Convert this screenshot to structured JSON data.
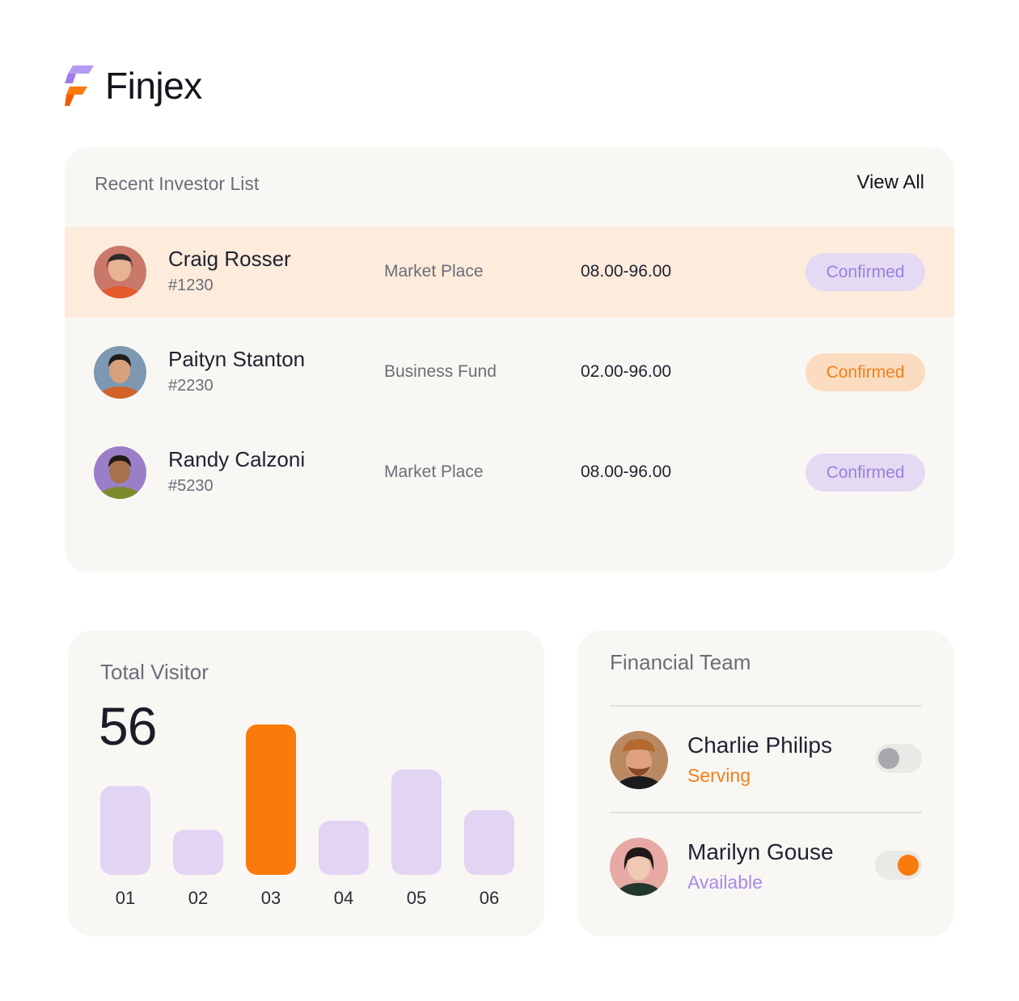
{
  "brand": {
    "name": "Finjex"
  },
  "investors": {
    "title": "Recent Investor List",
    "view_all": "View All",
    "rows": [
      {
        "name": "Craig Rosser",
        "id": "#1230",
        "type": "Market Place",
        "range": "08.00-96.00",
        "status": "Confirmed"
      },
      {
        "name": "Paityn Stanton",
        "id": "#2230",
        "type": "Business Fund",
        "range": "02.00-96.00",
        "status": "Confirmed"
      },
      {
        "name": "Randy Calzoni",
        "id": "#5230",
        "type": "Market Place",
        "range": "08.00-96.00",
        "status": "Confirmed"
      }
    ]
  },
  "visitors": {
    "title": "Total Visitor",
    "total": "56"
  },
  "chart_data": {
    "type": "bar",
    "categories": [
      "01",
      "02",
      "03",
      "04",
      "05",
      "06"
    ],
    "values": [
      0.59,
      0.3,
      1.0,
      0.36,
      0.7,
      0.43
    ],
    "highlight_index": 2,
    "colors": {
      "default": "#e2d4f3",
      "highlight": "#fb7a0c"
    }
  },
  "team": {
    "title": "Financial Team",
    "members": [
      {
        "name": "Charlie Philips",
        "status": "Serving",
        "toggle": "off"
      },
      {
        "name": "Marilyn Gouse",
        "status": "Available",
        "toggle": "on"
      }
    ]
  },
  "colors": {
    "accent_orange": "#f57e18",
    "accent_purple": "#9b7fe0",
    "card_bg": "#f8f7f4"
  }
}
